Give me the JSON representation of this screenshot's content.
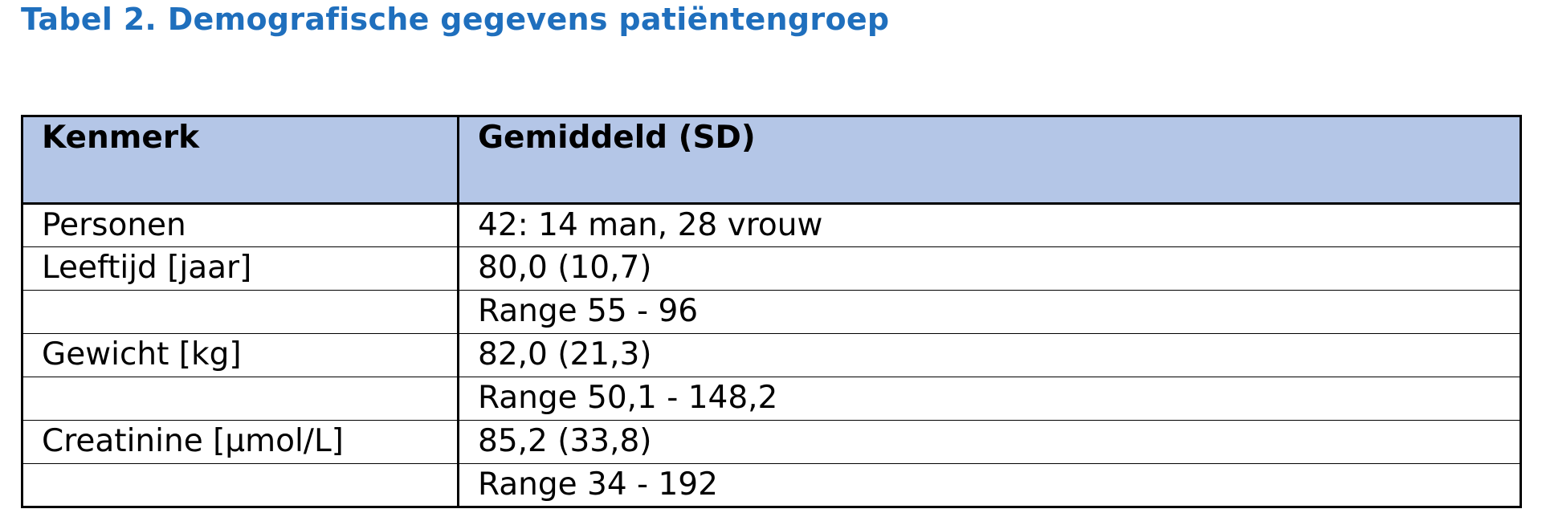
{
  "title": "Tabel 2. Demografische gegevens patiëntengroep",
  "table": {
    "headers": [
      "Kenmerk",
      "Gemiddeld (SD)"
    ],
    "rows": [
      [
        "Personen",
        "42:  14 man, 28 vrouw"
      ],
      [
        "Leeftijd [jaar]",
        "80,0 (10,7)"
      ],
      [
        "",
        "Range 55 - 96"
      ],
      [
        "Gewicht [kg]",
        "82,0 (21,3)"
      ],
      [
        "",
        "Range 50,1 - 148,2"
      ],
      [
        "Creatinine [µmol/L]",
        "85,2 (33,8)"
      ],
      [
        "",
        "Range 34 - 192"
      ]
    ]
  },
  "colors": {
    "title": "#1f6fbd",
    "header_background": "#b4c6e7",
    "border": "#000000"
  }
}
